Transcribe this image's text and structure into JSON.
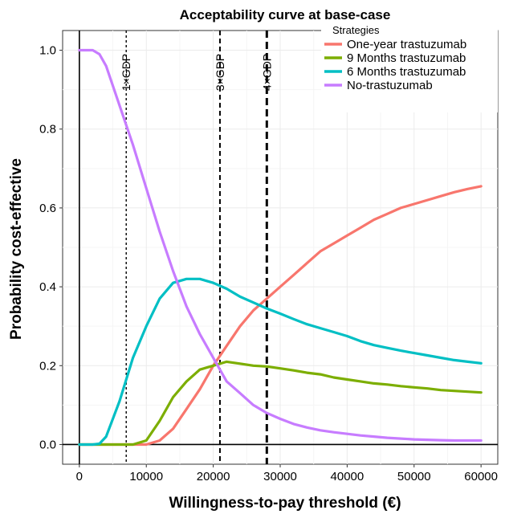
{
  "chart_data": {
    "type": "line",
    "title": "Acceptability curve at base-case",
    "xlabel": "Willingness-to-pay threshold (€)",
    "ylabel": "Probability cost-effective",
    "xlim": [
      -2500,
      62500
    ],
    "ylim": [
      -0.05,
      1.05
    ],
    "x_ticks": [
      0,
      10000,
      20000,
      30000,
      40000,
      50000,
      60000
    ],
    "y_ticks": [
      0.0,
      0.2,
      0.4,
      0.6,
      0.8,
      1.0
    ],
    "y_tick_labels": [
      "0.0",
      "0.2",
      "0.4",
      "0.6",
      "0.8",
      "1.0"
    ],
    "grid": true,
    "legend": {
      "title": "Strategies",
      "position": "top-right"
    },
    "series": [
      {
        "name": "One-year trastuzumab",
        "color": "#F8766D",
        "x": [
          0,
          2000,
          4000,
          6000,
          8000,
          10000,
          12000,
          14000,
          16000,
          18000,
          20000,
          22000,
          24000,
          26000,
          28000,
          30000,
          32000,
          34000,
          36000,
          38000,
          40000,
          42000,
          44000,
          46000,
          48000,
          50000,
          52000,
          54000,
          56000,
          58000,
          60000
        ],
        "values": [
          0.0,
          0.0,
          0.0,
          0.0,
          0.0,
          0.0,
          0.01,
          0.04,
          0.09,
          0.14,
          0.2,
          0.25,
          0.3,
          0.34,
          0.37,
          0.4,
          0.43,
          0.46,
          0.49,
          0.51,
          0.53,
          0.55,
          0.57,
          0.585,
          0.6,
          0.61,
          0.62,
          0.63,
          0.64,
          0.648,
          0.655
        ]
      },
      {
        "name": "9 Months trastuzumab",
        "color": "#7CAE00",
        "x": [
          0,
          2000,
          4000,
          6000,
          8000,
          10000,
          12000,
          14000,
          16000,
          18000,
          20000,
          22000,
          24000,
          26000,
          28000,
          30000,
          32000,
          34000,
          36000,
          38000,
          40000,
          42000,
          44000,
          46000,
          48000,
          50000,
          52000,
          54000,
          56000,
          58000,
          60000
        ],
        "values": [
          0.0,
          0.0,
          0.0,
          0.0,
          0.0,
          0.01,
          0.06,
          0.12,
          0.16,
          0.19,
          0.2,
          0.21,
          0.205,
          0.2,
          0.198,
          0.193,
          0.188,
          0.182,
          0.178,
          0.17,
          0.165,
          0.16,
          0.155,
          0.152,
          0.148,
          0.145,
          0.142,
          0.138,
          0.136,
          0.134,
          0.132
        ]
      },
      {
        "name": "6 Months trastuzumab",
        "color": "#00BFC4",
        "x": [
          0,
          2000,
          3000,
          4000,
          6000,
          8000,
          10000,
          12000,
          14000,
          16000,
          18000,
          20000,
          22000,
          24000,
          26000,
          28000,
          30000,
          32000,
          34000,
          36000,
          38000,
          40000,
          42000,
          44000,
          46000,
          48000,
          50000,
          52000,
          54000,
          56000,
          58000,
          60000
        ],
        "values": [
          0.0,
          0.0,
          0.002,
          0.02,
          0.11,
          0.22,
          0.3,
          0.37,
          0.41,
          0.42,
          0.42,
          0.41,
          0.395,
          0.375,
          0.36,
          0.345,
          0.332,
          0.318,
          0.305,
          0.295,
          0.285,
          0.275,
          0.262,
          0.252,
          0.245,
          0.238,
          0.232,
          0.226,
          0.22,
          0.214,
          0.21,
          0.206
        ]
      },
      {
        "name": "No-trastuzumab",
        "color": "#C77CFF",
        "x": [
          0,
          2000,
          3000,
          4000,
          6000,
          8000,
          10000,
          12000,
          14000,
          16000,
          18000,
          20000,
          22000,
          24000,
          26000,
          28000,
          30000,
          32000,
          34000,
          36000,
          38000,
          40000,
          42000,
          44000,
          46000,
          48000,
          50000,
          52000,
          54000,
          56000,
          58000,
          60000
        ],
        "values": [
          1.0,
          1.0,
          0.99,
          0.96,
          0.86,
          0.76,
          0.65,
          0.54,
          0.44,
          0.35,
          0.28,
          0.22,
          0.16,
          0.13,
          0.1,
          0.08,
          0.065,
          0.052,
          0.043,
          0.036,
          0.031,
          0.027,
          0.023,
          0.02,
          0.017,
          0.015,
          0.013,
          0.012,
          0.011,
          0.01,
          0.01,
          0.01
        ]
      }
    ],
    "vertical_lines": [
      {
        "x": 7000,
        "label": "1×GDP",
        "style": "dotted"
      },
      {
        "x": 21000,
        "label": "3×GDP",
        "style": "dashed"
      },
      {
        "x": 28000,
        "label": "4×GDP",
        "style": "dashed-bold"
      }
    ]
  }
}
